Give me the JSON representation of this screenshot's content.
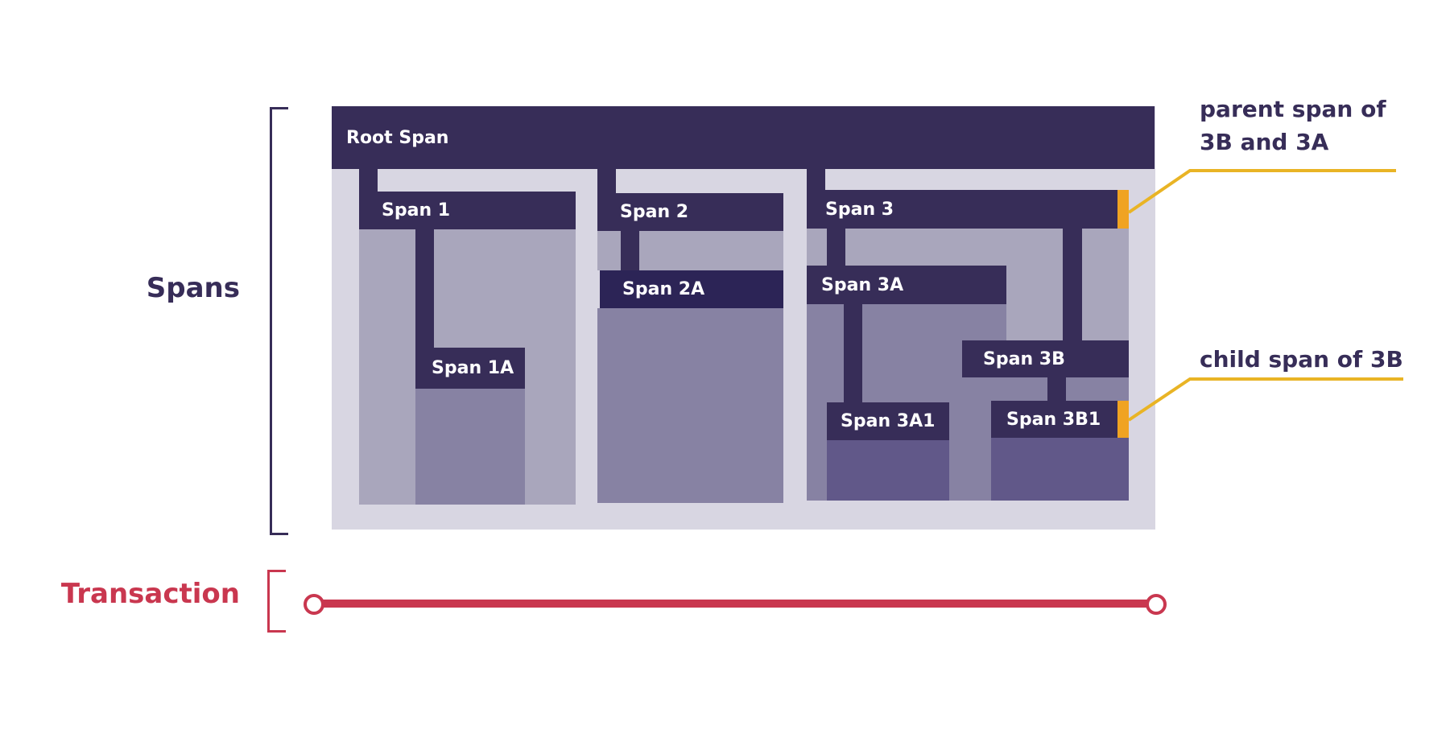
{
  "colors": {
    "span": "#372d58",
    "highlight": "#f0a322",
    "transaction": "#c9374f",
    "callout": "#e9b425"
  },
  "labels": {
    "spans": "Spans",
    "transaction": "Transaction"
  },
  "spans": {
    "root": "Root Span",
    "s1": "Span 1",
    "s1a": "Span 1A",
    "s2": "Span 2",
    "s2a": "Span 2A",
    "s3": "Span 3",
    "s3a": "Span 3A",
    "s3a1": "Span 3A1",
    "s3b": "Span 3B",
    "s3b1": "Span 3B1"
  },
  "callouts": {
    "parent_line1": "parent span of",
    "parent_line2": "3B and 3A",
    "child": "child span of 3B"
  }
}
